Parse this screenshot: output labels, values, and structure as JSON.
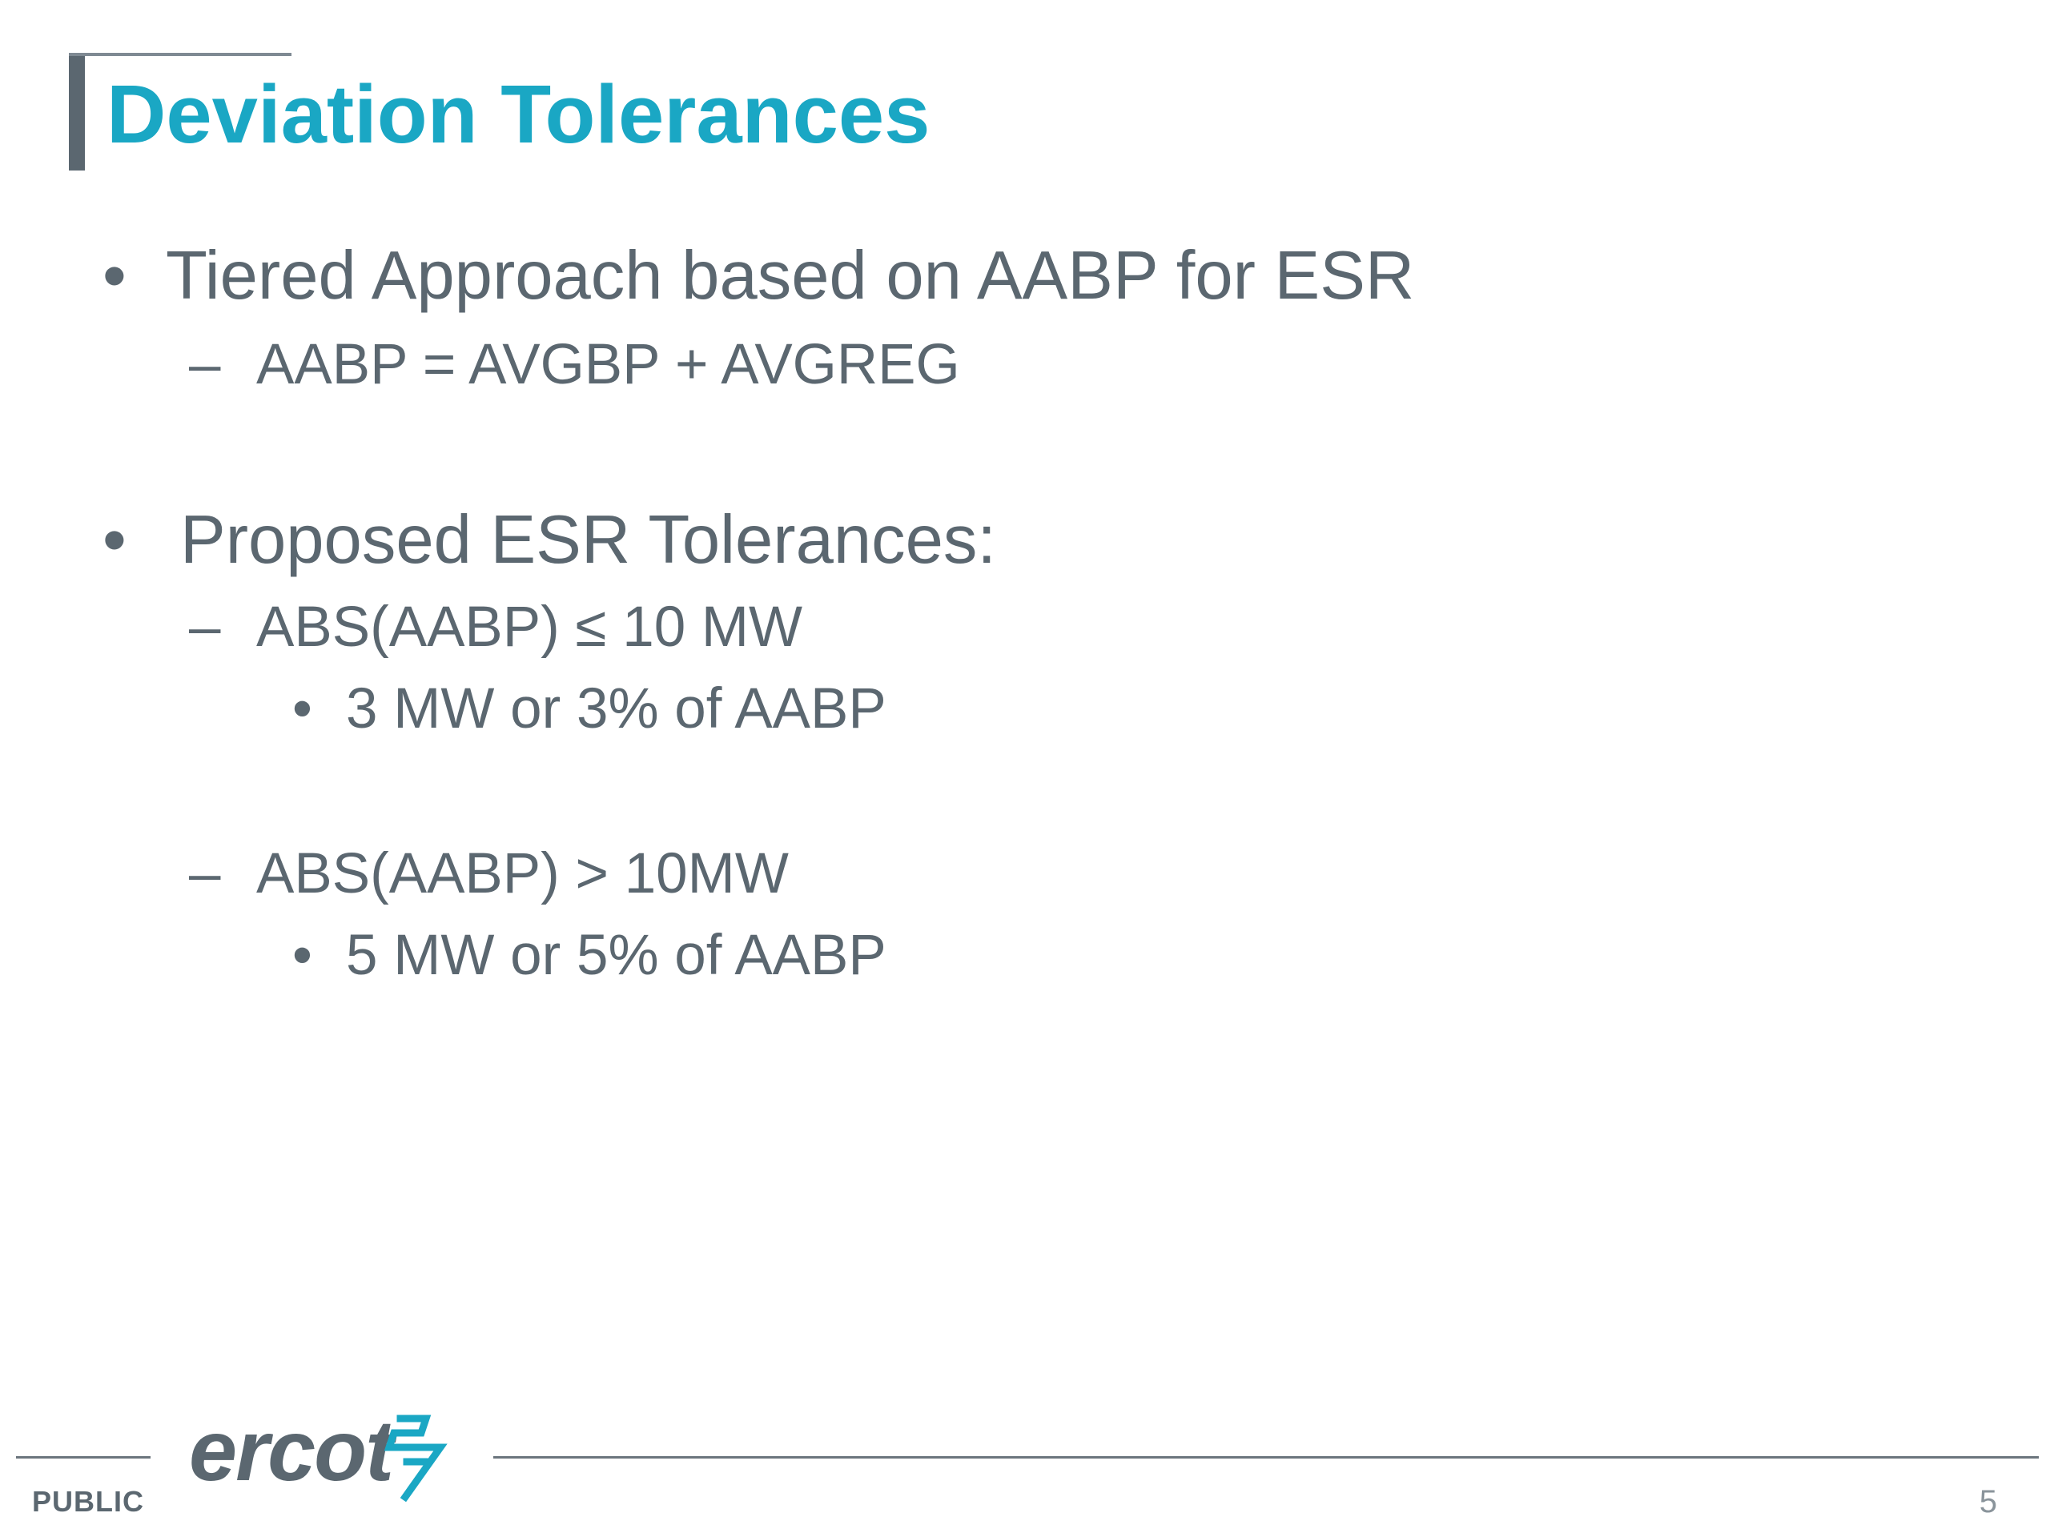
{
  "slide": {
    "title": "Deviation Tolerances",
    "bullets": [
      {
        "text": "Tiered Approach based on AABP for ESR",
        "sub": [
          {
            "text": "AABP = AVGBP + AVGREG"
          }
        ]
      },
      {
        "text": "Proposed ESR Tolerances:",
        "sub": [
          {
            "text": "ABS(AABP) ≤ 10 MW",
            "sub": [
              "3 MW or 3% of AABP"
            ]
          },
          {
            "text": "ABS(AABP) > 10MW",
            "sub": [
              "5 MW or 5% of AABP"
            ]
          }
        ]
      }
    ],
    "bullet_glyph": "•",
    "dash_glyph": "–"
  },
  "footer": {
    "classification": "PUBLIC",
    "logo_text": "ercot",
    "logo_icon": "ercot-lightning-icon",
    "page_number": "5"
  },
  "colors": {
    "title": "#1aa7c4",
    "body_text": "#5b6770",
    "accent_bar": "#5b6770",
    "logo_icon": "#1aa7c4"
  }
}
